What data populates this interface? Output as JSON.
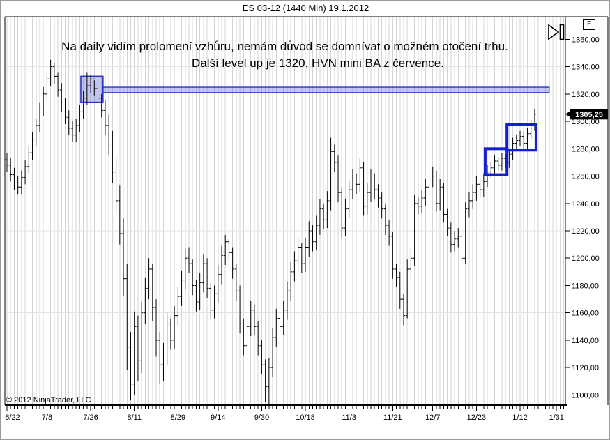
{
  "window": {
    "title": "ES 03-12 (1440 Min)  19.1.2012"
  },
  "annotation": {
    "line1": "Na daily vidím prolomení vzhůru, nemám důvod se domnívat o možném  otočení trhu.",
    "line2": "Další level up je 1320, HVN mini BA z července."
  },
  "copyright": "© 2012 NinjaTrader, LLC",
  "price_axis": {
    "instrument_flag": "F",
    "last_price_label": "1305,25",
    "last_price": 1305.25,
    "labels": [
      {
        "t": "1360,00",
        "p": 1360
      },
      {
        "t": "1340,00",
        "p": 1340
      },
      {
        "t": "1320,00",
        "p": 1320
      },
      {
        "t": "1300,00",
        "p": 1300
      },
      {
        "t": "1280,00",
        "p": 1280
      },
      {
        "t": "1260,00",
        "p": 1260
      },
      {
        "t": "1240,00",
        "p": 1240
      },
      {
        "t": "1220,00",
        "p": 1220
      },
      {
        "t": "1200,00",
        "p": 1200
      },
      {
        "t": "1180,00",
        "p": 1180
      },
      {
        "t": "1160,00",
        "p": 1160
      },
      {
        "t": "1140,00",
        "p": 1140
      },
      {
        "t": "1120,00",
        "p": 1120
      },
      {
        "t": "1100,00",
        "p": 1100
      }
    ]
  },
  "time_axis": {
    "labels": [
      {
        "t": "6/22",
        "i": 0
      },
      {
        "t": "7/8",
        "i": 11
      },
      {
        "t": "7/26",
        "i": 23
      },
      {
        "t": "8/11",
        "i": 35
      },
      {
        "t": "8/29",
        "i": 47
      },
      {
        "t": "9/14",
        "i": 58
      },
      {
        "t": "9/30",
        "i": 70
      },
      {
        "t": "10/18",
        "i": 82
      },
      {
        "t": "11/3",
        "i": 94
      },
      {
        "t": "11/21",
        "i": 106
      },
      {
        "t": "12/7",
        "i": 117
      },
      {
        "t": "12/23",
        "i": 129
      },
      {
        "t": "1/12",
        "i": 141
      },
      {
        "t": "1/31",
        "i": 151
      }
    ]
  },
  "colors": {
    "bar": "#000000",
    "grid_v": "#d4d4d6",
    "grid_h": "#e3e3e5",
    "border": "#000000",
    "drawing_fill": "rgba(70,82,208,0.33)",
    "drawing_stroke": "#2b34bf",
    "outline_box": "#1420d0",
    "badge_bg": "#000000",
    "badge_text": "#ffffff",
    "axis_text": "#000000"
  },
  "chart_data": {
    "type": "ohlc-bar",
    "title": "ES 03-12 (1440 Min)  19.1.2012",
    "ylabel": "price",
    "y_min": 1100,
    "y_max": 1360,
    "y_step": 20,
    "h_gridlines": [
      1340,
      1280,
      1220,
      1160,
      1100
    ],
    "bars_total_slots": 154,
    "open": [
      1272,
      1268,
      1261,
      1255,
      1252,
      1259,
      1267,
      1277,
      1287,
      1297,
      1309,
      1320,
      1331,
      1340,
      1333,
      1323,
      1312,
      1303,
      1295,
      1290,
      1297,
      1307,
      1317,
      1326,
      1331,
      1324,
      1317,
      1308,
      1297,
      1282,
      1263,
      1242,
      1218,
      1185,
      1135,
      1108,
      1150,
      1125,
      1160,
      1178,
      1192,
      1164,
      1140,
      1122,
      1130,
      1152,
      1140,
      1158,
      1172,
      1184,
      1200,
      1196,
      1180,
      1168,
      1182,
      1196,
      1178,
      1162,
      1174,
      1188,
      1202,
      1212,
      1204,
      1192,
      1176,
      1152,
      1136,
      1150,
      1162,
      1150,
      1136,
      1122,
      1106,
      1120,
      1142,
      1156,
      1150,
      1162,
      1176,
      1190,
      1198,
      1208,
      1196,
      1208,
      1220,
      1212,
      1224,
      1236,
      1228,
      1242,
      1278,
      1270,
      1248,
      1222,
      1236,
      1250,
      1258,
      1254,
      1266,
      1238,
      1248,
      1258,
      1250,
      1244,
      1236,
      1224,
      1216,
      1192,
      1186,
      1170,
      1158,
      1192,
      1200,
      1240,
      1238,
      1244,
      1252,
      1258,
      1260,
      1240,
      1252,
      1232,
      1222,
      1210,
      1214,
      1216,
      1200,
      1236,
      1242,
      1248,
      1254,
      1250,
      1256,
      1263,
      1266,
      1271,
      1268,
      1273,
      1270,
      1276,
      1284,
      1286,
      1289,
      1284,
      1291,
      1297
    ],
    "high": [
      1277,
      1273,
      1266,
      1260,
      1264,
      1272,
      1282,
      1292,
      1302,
      1314,
      1325,
      1336,
      1345,
      1343,
      1336,
      1328,
      1317,
      1308,
      1300,
      1302,
      1312,
      1322,
      1336,
      1334,
      1330,
      1327,
      1320,
      1316,
      1305,
      1293,
      1274,
      1253,
      1229,
      1196,
      1146,
      1161,
      1158,
      1168,
      1186,
      1200,
      1196,
      1170,
      1146,
      1138,
      1160,
      1156,
      1165,
      1179,
      1191,
      1207,
      1208,
      1199,
      1184,
      1189,
      1203,
      1200,
      1182,
      1180,
      1195,
      1209,
      1217,
      1214,
      1208,
      1196,
      1180,
      1156,
      1157,
      1169,
      1166,
      1154,
      1140,
      1126,
      1127,
      1149,
      1163,
      1160,
      1169,
      1183,
      1197,
      1205,
      1215,
      1211,
      1215,
      1227,
      1224,
      1231,
      1243,
      1240,
      1249,
      1288,
      1283,
      1275,
      1252,
      1243,
      1257,
      1265,
      1262,
      1273,
      1270,
      1255,
      1265,
      1262,
      1254,
      1248,
      1240,
      1228,
      1219,
      1196,
      1190,
      1174,
      1199,
      1207,
      1246,
      1245,
      1250,
      1258,
      1264,
      1267,
      1264,
      1258,
      1255,
      1236,
      1226,
      1220,
      1222,
      1219,
      1241,
      1248,
      1254,
      1260,
      1258,
      1262,
      1268,
      1270,
      1275,
      1274,
      1277,
      1276,
      1280,
      1288,
      1290,
      1293,
      1292,
      1295,
      1301,
      1309
    ],
    "low": [
      1263,
      1256,
      1250,
      1247,
      1247,
      1254,
      1262,
      1272,
      1282,
      1292,
      1304,
      1315,
      1326,
      1327,
      1318,
      1307,
      1298,
      1290,
      1285,
      1285,
      1292,
      1302,
      1312,
      1321,
      1319,
      1312,
      1303,
      1290,
      1275,
      1255,
      1234,
      1210,
      1172,
      1118,
      1096,
      1100,
      1110,
      1116,
      1152,
      1170,
      1154,
      1128,
      1108,
      1110,
      1122,
      1133,
      1134,
      1151,
      1165,
      1177,
      1189,
      1173,
      1161,
      1162,
      1175,
      1171,
      1155,
      1156,
      1167,
      1181,
      1195,
      1197,
      1185,
      1169,
      1145,
      1129,
      1130,
      1143,
      1144,
      1129,
      1115,
      1095,
      1092,
      1113,
      1135,
      1143,
      1144,
      1155,
      1169,
      1183,
      1191,
      1189,
      1190,
      1201,
      1205,
      1206,
      1217,
      1221,
      1222,
      1235,
      1263,
      1241,
      1215,
      1216,
      1229,
      1243,
      1247,
      1248,
      1231,
      1232,
      1241,
      1243,
      1237,
      1229,
      1217,
      1209,
      1185,
      1179,
      1163,
      1151,
      1156,
      1185,
      1194,
      1232,
      1233,
      1238,
      1246,
      1252,
      1234,
      1235,
      1226,
      1216,
      1204,
      1205,
      1208,
      1194,
      1196,
      1230,
      1236,
      1242,
      1244,
      1245,
      1252,
      1259,
      1262,
      1264,
      1264,
      1266,
      1266,
      1272,
      1280,
      1282,
      1280,
      1280,
      1287,
      1293
    ],
    "close": [
      1268,
      1261,
      1255,
      1252,
      1259,
      1267,
      1277,
      1287,
      1297,
      1309,
      1320,
      1331,
      1340,
      1333,
      1323,
      1312,
      1303,
      1295,
      1290,
      1297,
      1307,
      1317,
      1326,
      1331,
      1324,
      1317,
      1308,
      1297,
      1282,
      1263,
      1242,
      1218,
      1185,
      1135,
      1108,
      1150,
      1125,
      1160,
      1178,
      1192,
      1164,
      1140,
      1122,
      1130,
      1152,
      1140,
      1158,
      1172,
      1184,
      1200,
      1196,
      1180,
      1168,
      1182,
      1196,
      1178,
      1162,
      1174,
      1188,
      1202,
      1212,
      1204,
      1192,
      1176,
      1152,
      1136,
      1150,
      1162,
      1150,
      1136,
      1122,
      1106,
      1120,
      1142,
      1156,
      1150,
      1162,
      1176,
      1190,
      1198,
      1208,
      1196,
      1208,
      1220,
      1212,
      1224,
      1236,
      1228,
      1242,
      1278,
      1270,
      1248,
      1222,
      1236,
      1250,
      1258,
      1254,
      1266,
      1238,
      1248,
      1258,
      1250,
      1244,
      1236,
      1224,
      1216,
      1192,
      1186,
      1170,
      1158,
      1192,
      1200,
      1240,
      1238,
      1244,
      1252,
      1258,
      1260,
      1240,
      1252,
      1232,
      1222,
      1210,
      1214,
      1216,
      1200,
      1236,
      1242,
      1248,
      1254,
      1250,
      1256,
      1263,
      1266,
      1271,
      1268,
      1273,
      1270,
      1276,
      1284,
      1286,
      1289,
      1284,
      1291,
      1297,
      1305.25
    ],
    "drawings": {
      "highlight_box": {
        "bar_start": 20.3,
        "bar_end": 26.4,
        "price_top": 1333,
        "price_bottom": 1314
      },
      "level_band": {
        "bar_start": 26.4,
        "bar_end": 149.0,
        "price_top": 1325,
        "price_bottom": 1321,
        "level": 1320
      },
      "outline_boxes": [
        {
          "bar_start": 131.4,
          "bar_end": 137.4,
          "price_top": 1280,
          "price_bottom": 1261
        },
        {
          "bar_start": 137.4,
          "bar_end": 145.4,
          "price_top": 1298,
          "price_bottom": 1279
        }
      ]
    }
  }
}
